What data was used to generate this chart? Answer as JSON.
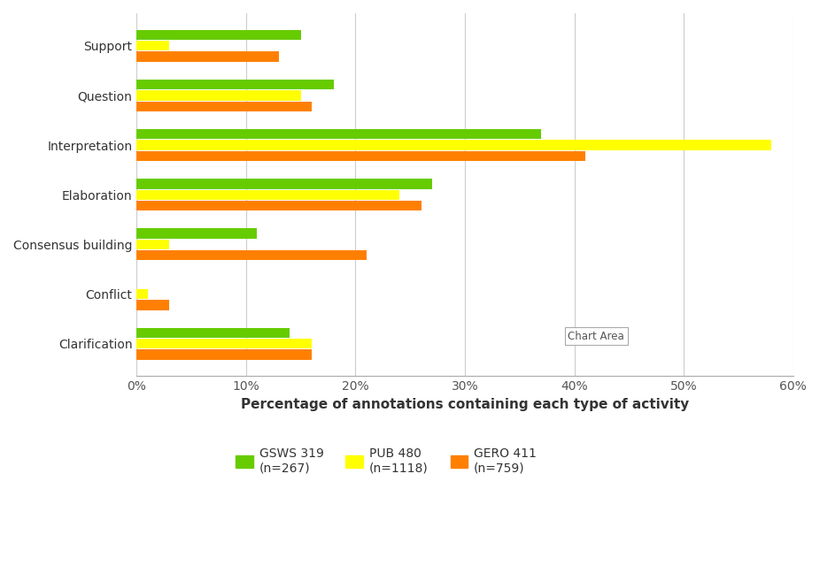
{
  "categories": [
    "Clarification",
    "Conflict",
    "Consensus building",
    "Elaboration",
    "Interpretation",
    "Question",
    "Support"
  ],
  "series": {
    "GSWS 319\n(n=267)": [
      14,
      0,
      11,
      27,
      37,
      18,
      15
    ],
    "PUB 480\n(n=1118)": [
      16,
      1,
      3,
      24,
      58,
      15,
      3
    ],
    "GERO 411\n(n=759)": [
      16,
      3,
      21,
      26,
      41,
      16,
      13
    ]
  },
  "colors": {
    "GSWS 319\n(n=267)": "#66cc00",
    "PUB 480\n(n=1118)": "#ffff00",
    "GERO 411\n(n=759)": "#ff8000"
  },
  "xlabel": "Percentage of annotations containing each type of activity",
  "xlim": [
    0,
    60
  ],
  "xticks": [
    0,
    10,
    20,
    30,
    40,
    50,
    60
  ],
  "xtick_labels": [
    "0%",
    "10%",
    "20%",
    "30%",
    "40%",
    "50%",
    "60%"
  ],
  "background_color": "#ffffff",
  "chart_area_color": "#ffffff",
  "grid_color": "#cccccc",
  "bar_height": 0.22,
  "legend_labels": [
    "GSWS 319\n(n=267)",
    "PUB 480\n(n=1118)",
    "GERO 411\n(n=759)"
  ],
  "chart_area_label": "Chart Area",
  "axis_label_fontsize": 11,
  "tick_fontsize": 10,
  "legend_fontsize": 10
}
